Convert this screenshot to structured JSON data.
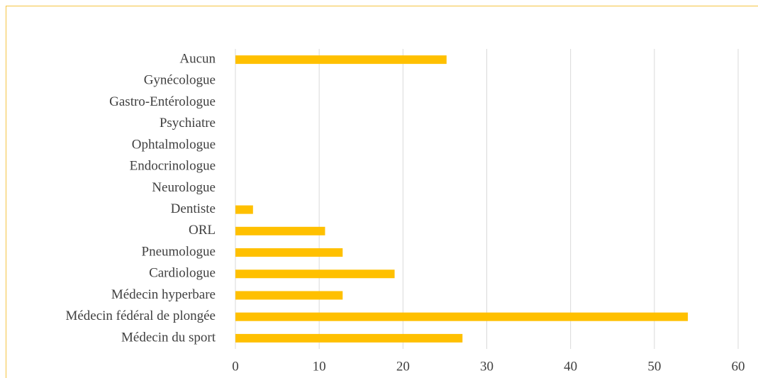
{
  "chart_data": {
    "type": "bar",
    "orientation": "horizontal",
    "categories": [
      "Aucun",
      "Gynécologue",
      "Gastro-Entérologue",
      "Psychiatre",
      "Ophtalmologue",
      "Endocrinologue",
      "Neurologue",
      "Dentiste",
      "ORL",
      "Pneumologue",
      "Cardiologue",
      "Médecin hyperbare",
      "Médecin fédéral de plongée",
      "Médecin du sport"
    ],
    "values": [
      25.2,
      0,
      0,
      0,
      0,
      0,
      0,
      2.1,
      10.7,
      12.8,
      19,
      12.8,
      54,
      27.1
    ],
    "color": "#ffc000",
    "xlim": [
      0,
      60
    ],
    "xticks": [
      0,
      10,
      20,
      30,
      40,
      50,
      60
    ],
    "grid": true
  }
}
